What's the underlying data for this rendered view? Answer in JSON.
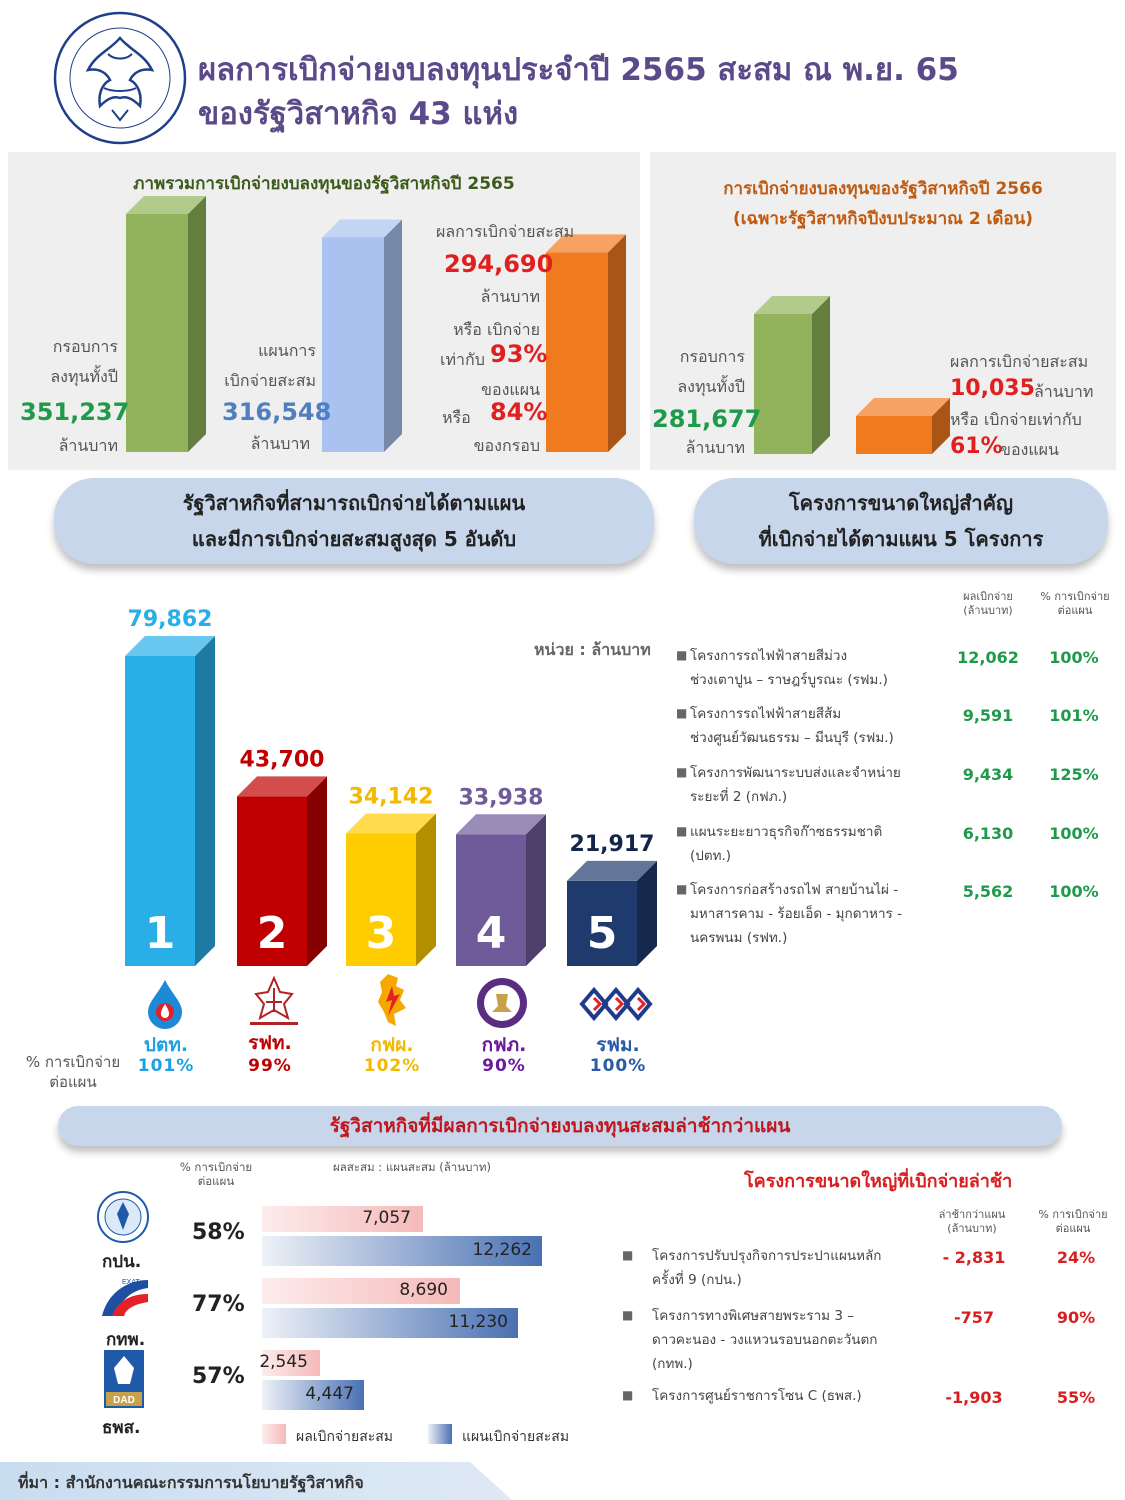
{
  "header": {
    "title_line1": "ผลการเบิกจ่ายงบลงทุนประจำปี 2565 สะสม ณ พ.ย. 65",
    "title_line2": "ของรัฐวิสาหกิจ 43 แห่ง",
    "logo_text": "สำนักงานคณะกรรมการนโยบายรัฐวิสาหกิจ"
  },
  "panel2565": {
    "title": "ภาพรวมการเบิกจ่ายงบลงทุนของรัฐวิสาหกิจปี 2565",
    "budget_label1": "กรอบการ",
    "budget_label2": "ลงทุนทั้งปี",
    "budget_value": "351,237",
    "unit": "ล้านบาท",
    "plan_label1": "แผนการ",
    "plan_label2": "เบิกจ่ายสะสม",
    "plan_value": "316,548",
    "actual_label": "ผลการเบิกจ่ายสะสม",
    "actual_value": "294,690",
    "or_disburse": "หรือ เบิกจ่าย",
    "equal_to": "เท่ากับ",
    "pct_plan": "93%",
    "of_plan": "ของแผน",
    "or": "หรือ",
    "pct_budget": "84%",
    "of_budget": "ของกรอบ"
  },
  "panel2566": {
    "title_line1": "การเบิกจ่ายงบลงทุนของรัฐวิสาหกิจปี 2566",
    "title_line2": "(เฉพาะรัฐวิสาหกิจปีงบประมาณ 2 เดือน)",
    "budget_label1": "กรอบการ",
    "budget_label2": "ลงทุนทั้งปี",
    "budget_value": "281,677",
    "unit": "ล้านบาท",
    "actual_label": "ผลการเบิกจ่ายสะสม",
    "actual_value": "10,035",
    "or_disburse_equal": "หรือ เบิกจ่ายเท่ากับ",
    "pct": "61%",
    "of_plan": "ของแผน"
  },
  "pill_top5": {
    "line1": "รัฐวิสาหกิจที่สามารถเบิกจ่ายได้ตามแผน",
    "line2": "และมีการเบิกจ่ายสะสมสูงสุด 5 อันดับ"
  },
  "pill_projects": {
    "line1": "โครงการขนาดใหญ่สำคัญ",
    "line2": "ที่เบิกจ่ายได้ตามแผน 5 โครงการ"
  },
  "top5": {
    "unit_note": "หน่วย : ล้านบาท",
    "pct_label1": "% การเบิกจ่าย",
    "pct_label2": "ต่อแผน",
    "items": [
      {
        "rank": "1",
        "value_label": "79,862",
        "abbr": "ปตท.",
        "pct": "101%"
      },
      {
        "rank": "2",
        "value_label": "43,700",
        "abbr": "รฟท.",
        "pct": "99%"
      },
      {
        "rank": "3",
        "value_label": "34,142",
        "abbr": "กฟผ.",
        "pct": "102%"
      },
      {
        "rank": "4",
        "value_label": "33,938",
        "abbr": "กฟภ.",
        "pct": "90%"
      },
      {
        "rank": "5",
        "value_label": "21,917",
        "abbr": "รฟม.",
        "pct": "100%"
      }
    ]
  },
  "projects_on_plan": {
    "col1_line1": "ผลเบิกจ่าย",
    "col1_line2": "(ล้านบาท)",
    "col2_line1": "% การเบิกจ่าย",
    "col2_line2": "ต่อแผน",
    "rows": [
      {
        "line1": "โครงการรถไฟฟ้าสายสีม่วง",
        "line2": "ช่วงเตาปูน – ราษฎร์บูรณะ (รฟม.)",
        "line3": "",
        "value": "12,062",
        "pct": "100%"
      },
      {
        "line1": "โครงการรถไฟฟ้าสายสีส้ม",
        "line2": "ช่วงศูนย์วัฒนธรรม – มีนบุรี (รฟม.)",
        "line3": "",
        "value": "9,591",
        "pct": "101%"
      },
      {
        "line1": "โครงการพัฒนาระบบส่งและจำหน่าย",
        "line2": "ระยะที่ 2 (กฟภ.)",
        "line3": "",
        "value": "9,434",
        "pct": "125%"
      },
      {
        "line1": "แผนระยะยาวธุรกิจก๊าซธรรมชาติ",
        "line2": "(ปตท.)",
        "line3": "",
        "value": "6,130",
        "pct": "100%"
      },
      {
        "line1": "โครงการก่อสร้างรถไฟ สายบ้านไผ่ -",
        "line2": "มหาสารคาม - ร้อยเอ็ด - มุกดาหาร -",
        "line3": "นครพนม (รฟท.)",
        "value": "5,562",
        "pct": "100%"
      }
    ]
  },
  "pill_late": {
    "text": "รัฐวิสาหกิจที่มีผลการเบิกจ่ายงบลงทุนสะสมล่าช้ากว่าแผน"
  },
  "late": {
    "pct_header1": "% การเบิกจ่าย",
    "pct_header2": "ต่อแผน",
    "value_header": "ผลสะสม : แผนสะสม (ล้านบาท)",
    "items": [
      {
        "abbr": "กปน.",
        "pct": "58%",
        "actual_label": "7,057",
        "plan_label": "12,262"
      },
      {
        "abbr": "กทพ.",
        "pct": "77%",
        "actual_label": "8,690",
        "plan_label": "11,230"
      },
      {
        "abbr": "ธพส.",
        "pct": "57%",
        "actual_label": "2,545",
        "plan_label": "4,447"
      }
    ],
    "logo_exat": "EXAT",
    "logo_dad": "DAD",
    "legend_actual": "ผลเบิกจ่ายสะสม",
    "legend_plan": "แผนเบิกจ่ายสะสม"
  },
  "late_projects": {
    "title": "โครงการขนาดใหญ่ที่เบิกจ่ายล่าช้า",
    "col1_line1": "ล่าช้ากว่าแผน",
    "col1_line2": "(ล้านบาท)",
    "col2_line1": "% การเบิกจ่าย",
    "col2_line2": "ต่อแผน",
    "rows": [
      {
        "line1": "โครงการปรับปรุงกิจการประปาแผนหลัก",
        "line2": "ครั้งที่ 9 (กปน.)",
        "line3": "",
        "value": "- 2,831",
        "pct": "24%"
      },
      {
        "line1": "โครงการทางพิเศษสายพระราม 3 –",
        "line2": "ดาวคะนอง  - วงแหวนรอบนอกตะวันตก",
        "line3": "(กทพ.)",
        "value": "-757",
        "pct": "90%"
      },
      {
        "line1": "โครงการศูนย์ราชการโซน C (ธพส.)",
        "line2": "",
        "line3": "",
        "value": "-1,903",
        "pct": "55%"
      }
    ]
  },
  "footer": {
    "text": "ที่มา : สำนักงานคณะกรรมการนโยบายรัฐวิสาหกิจ"
  },
  "chart_data": [
    {
      "type": "bar",
      "title": "ภาพรวมการเบิกจ่ายงบลงทุนของรัฐวิสาหกิจปี 2565",
      "categories": [
        "กรอบการลงทุนทั้งปี",
        "แผนการเบิกจ่ายสะสม",
        "ผลการเบิกจ่ายสะสม"
      ],
      "values": [
        351237,
        316548,
        294690
      ],
      "colors": [
        "#92b35c",
        "#a9c2ef",
        "#f07a1e"
      ]
    },
    {
      "type": "bar",
      "title": "การเบิกจ่ายงบลงทุนของรัฐวิสาหกิจปี 2566",
      "categories": [
        "กรอบการลงทุนทั้งปี",
        "ผลการเบิกจ่ายสะสม"
      ],
      "values": [
        281677,
        10035
      ],
      "colors": [
        "#92b35c",
        "#f07a1e"
      ]
    },
    {
      "type": "bar",
      "title": "รัฐวิสาหกิจที่สามารถเบิกจ่ายได้ตามแผน และมีการเบิกจ่ายสะสมสูงสุด 5 อันดับ",
      "categories": [
        "ปตท.",
        "รฟท.",
        "กฟผ.",
        "กฟภ.",
        "รฟม."
      ],
      "values": [
        79862,
        43700,
        34142,
        33938,
        21917
      ],
      "pct_of_plan": [
        101,
        99,
        102,
        90,
        100
      ],
      "colors": [
        "#29aee8",
        "#c00000",
        "#ffcc00",
        "#6f5a9a",
        "#1f3b6e"
      ],
      "unit": "ล้านบาท"
    },
    {
      "type": "bar",
      "orientation": "horizontal",
      "title": "รัฐวิสาหกิจที่มีผลการเบิกจ่ายงบลงทุนสะสมล่าช้ากว่าแผน",
      "categories": [
        "กปน.",
        "กทพ.",
        "ธพส."
      ],
      "series": [
        {
          "name": "ผลเบิกจ่ายสะสม",
          "values": [
            7057,
            8690,
            2545
          ]
        },
        {
          "name": "แผนเบิกจ่ายสะสม",
          "values": [
            12262,
            11230,
            4447
          ]
        }
      ],
      "pct_of_plan": [
        58,
        77,
        57
      ]
    }
  ]
}
